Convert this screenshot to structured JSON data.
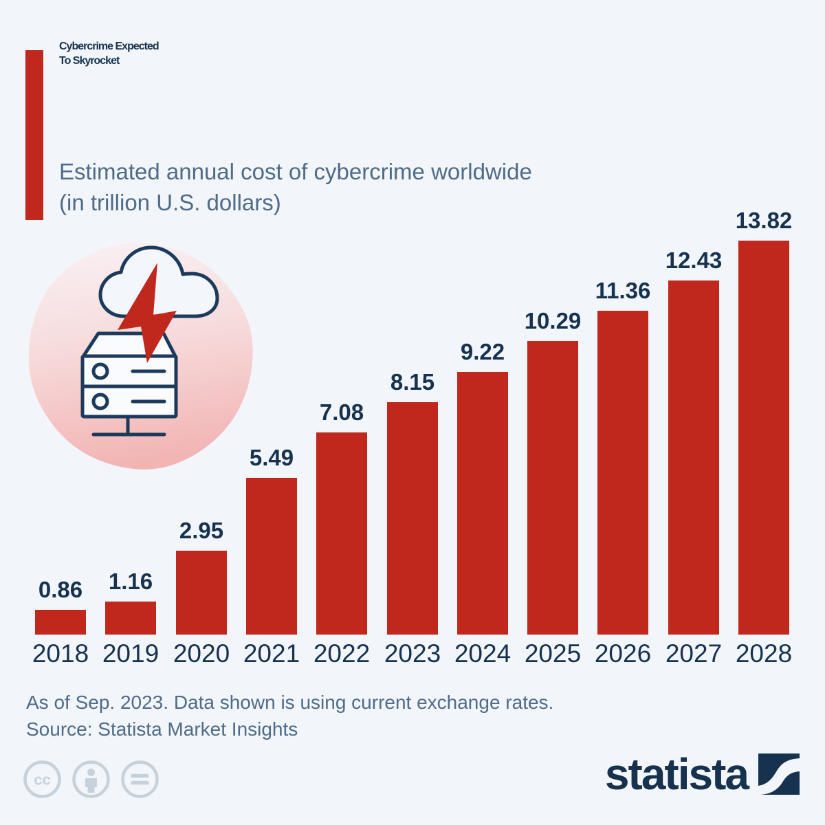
{
  "header": {
    "title_lines": [
      "Cybercrime Expected",
      "To Skyrocket"
    ],
    "subtitle_lines": [
      "Estimated annual cost of cybercrime worldwide",
      "(in trillion U.S. dollars)"
    ]
  },
  "hero_icon": {
    "name": "cloud-lightning-server-icon",
    "parts": [
      "cloud-icon",
      "lightning-bolt-icon",
      "server-icon"
    ]
  },
  "chart_data": {
    "type": "bar",
    "categories": [
      "2018",
      "2019",
      "2020",
      "2021",
      "2022",
      "2023",
      "2024",
      "2025",
      "2026",
      "2027",
      "2028"
    ],
    "values": [
      0.86,
      1.16,
      2.95,
      5.49,
      7.08,
      8.15,
      9.22,
      10.29,
      11.36,
      12.43,
      13.82
    ],
    "title": "Cybercrime Expected To Skyrocket",
    "xlabel": "",
    "ylabel": "",
    "ylim": [
      0,
      14
    ],
    "grid": false,
    "legend": "none",
    "data_labels_shown": true,
    "data_label_decimals": 2,
    "bar_color": "#C0281D"
  },
  "footer": {
    "note": "As of Sep. 2023. Data shown is using current exchange rates.",
    "source": "Source: Statista Market Insights",
    "license_icons": [
      "cc-icon",
      "cc-by-person-icon",
      "cc-nd-equals-icon"
    ],
    "brand": "statista"
  },
  "colors": {
    "background": "#F2F5F9",
    "accent_red": "#C0281D",
    "navy": "#16324F",
    "slate": "#4E6B88",
    "license_gray": "#C7D1DC"
  }
}
